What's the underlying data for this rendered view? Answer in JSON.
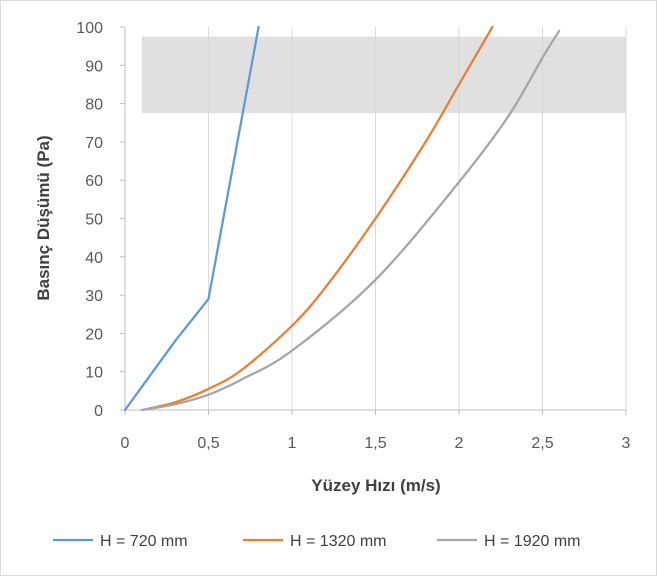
{
  "chart_data": {
    "type": "line",
    "title": "",
    "xlabel": "Yüzey Hızı (m/s)",
    "ylabel": "Basınç Düşümü (Pa)",
    "xlim": [
      0,
      3
    ],
    "ylim": [
      0,
      100
    ],
    "xticks": [
      0,
      0.5,
      1,
      1.5,
      2,
      2.5,
      3
    ],
    "xtick_labels": [
      "0",
      "0,5",
      "1",
      "1,5",
      "2",
      "2,5",
      "3"
    ],
    "yticks": [
      0,
      10,
      20,
      30,
      40,
      50,
      60,
      70,
      80,
      90,
      100
    ],
    "ytick_labels": [
      "0",
      "10",
      "20",
      "30",
      "40",
      "50",
      "60",
      "70",
      "80",
      "90",
      "100"
    ],
    "grid": "vertical",
    "shaded_band": {
      "x": [
        0.1,
        3
      ],
      "y": [
        77.5,
        97.5
      ],
      "color": "#e0e0e0"
    },
    "legend": {
      "position": "bottom"
    },
    "series": [
      {
        "name": "H = 720 mm",
        "color": "#5b9bd5",
        "x": [
          0,
          0.3,
          0.5,
          0.8
        ],
        "y": [
          0,
          18,
          29,
          100
        ]
      },
      {
        "name": "H = 1320 mm",
        "color": "#ed7d31",
        "x": [
          0.1,
          0.3,
          0.5,
          0.7,
          1.0,
          1.2,
          1.5,
          1.8,
          2.0,
          2.2
        ],
        "y": [
          0,
          2,
          5.5,
          10.5,
          22,
          32,
          50,
          70,
          85,
          100
        ]
      },
      {
        "name": "H = 1920 mm",
        "color": "#a5a5a5",
        "x": [
          0.1,
          0.3,
          0.5,
          0.7,
          1.0,
          1.5,
          2.0,
          2.3,
          2.5,
          2.6
        ],
        "y": [
          0,
          1.5,
          4,
          8,
          15.5,
          34,
          59.5,
          77,
          92,
          99
        ]
      }
    ]
  }
}
